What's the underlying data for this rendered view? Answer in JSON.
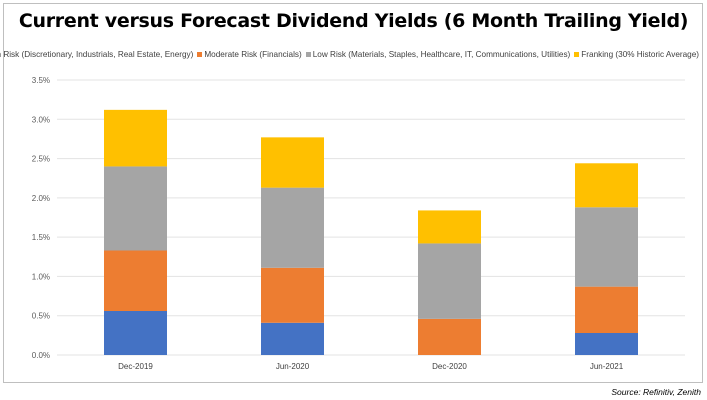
{
  "chart_data": {
    "type": "bar",
    "stacked": true,
    "title": "Current versus Forecast Dividend Yields (6 Month Trailing Yield)",
    "xlabel": "",
    "ylabel": "",
    "ylim": [
      0,
      3.5
    ],
    "yticks": [
      "0.0%",
      "0.5%",
      "1.0%",
      "1.5%",
      "2.0%",
      "2.5%",
      "3.0%",
      "3.5%"
    ],
    "grid": true,
    "legend_position": "top-right",
    "categories": [
      "Dec-2019",
      "Jun-2020",
      "Dec-2020",
      "Jun-2021"
    ],
    "series": [
      {
        "name": "High Risk (Discretionary, Industrials, Real Estate, Energy)",
        "color": "#4472c4",
        "values": [
          0.56,
          0.41,
          0.0,
          0.28
        ]
      },
      {
        "name": "Moderate Risk (Financials)",
        "color": "#ed7d31",
        "values": [
          0.77,
          0.7,
          0.46,
          0.59
        ]
      },
      {
        "name": "Low Risk (Materials, Staples, Healthcare, IT, Communications, Utilities)",
        "color": "#a5a5a5",
        "values": [
          1.07,
          1.02,
          0.96,
          1.01
        ]
      },
      {
        "name": "Franking (30% Historic Average)",
        "color": "#ffc000",
        "values": [
          0.72,
          0.64,
          0.42,
          0.56
        ]
      }
    ]
  },
  "source": "Source: Refinitiv, Zenith"
}
